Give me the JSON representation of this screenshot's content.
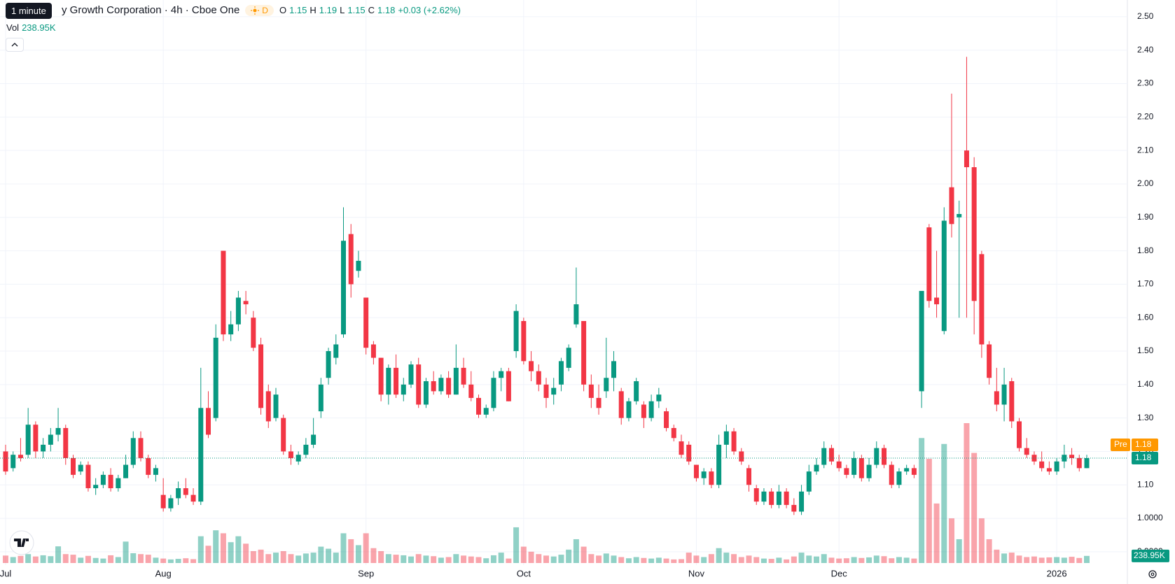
{
  "chart_data": {
    "type": "candlestick",
    "title": "y Growth Corporation · 4h · Cboe One",
    "header": {
      "tooltip": "1 minute",
      "interval": "D",
      "ohlc_labels": [
        "O",
        "H",
        "L",
        "C"
      ],
      "change": "+0.03 (+2.62%)",
      "volume_title": "Vol",
      "volume": "238.95K",
      "premarket_label": "Pre",
      "premarket_price": 1.18
    },
    "up_color": "#089981",
    "down_color": "#f23645",
    "categories": [
      "Jul",
      null,
      null,
      null,
      null,
      null,
      null,
      null,
      null,
      null,
      null,
      null,
      null,
      null,
      null,
      null,
      null,
      null,
      null,
      null,
      null,
      "Aug",
      null,
      null,
      null,
      null,
      null,
      null,
      null,
      null,
      null,
      null,
      null,
      null,
      null,
      null,
      null,
      null,
      null,
      null,
      null,
      null,
      null,
      null,
      null,
      null,
      null,
      null,
      "Sep",
      null,
      null,
      null,
      null,
      null,
      null,
      null,
      null,
      null,
      null,
      null,
      null,
      null,
      null,
      null,
      null,
      null,
      null,
      null,
      null,
      "Oct",
      null,
      null,
      null,
      null,
      null,
      null,
      null,
      null,
      null,
      null,
      null,
      null,
      null,
      null,
      null,
      null,
      null,
      null,
      null,
      null,
      null,
      null,
      "Nov",
      null,
      null,
      null,
      null,
      null,
      null,
      null,
      null,
      null,
      null,
      null,
      null,
      null,
      null,
      null,
      null,
      null,
      null,
      "Dec",
      null,
      null,
      null,
      null,
      null,
      null,
      null,
      null,
      null,
      null,
      null,
      null,
      null,
      null,
      null,
      null,
      null,
      null,
      null,
      null,
      null,
      null,
      null,
      null,
      null,
      null,
      null,
      null,
      "2026",
      null,
      null,
      null,
      null
    ],
    "open": [
      1.2,
      1.15,
      1.19,
      1.19,
      1.28,
      1.2,
      1.22,
      1.25,
      1.27,
      1.18,
      1.14,
      1.16,
      1.09,
      1.1,
      1.13,
      1.09,
      1.12,
      1.16,
      1.24,
      1.18,
      1.13,
      1.07,
      1.03,
      1.06,
      1.09,
      1.07,
      1.05,
      1.33,
      1.3,
      1.8,
      1.55,
      1.58,
      1.65,
      1.6,
      1.52,
      1.38,
      1.3,
      1.3,
      1.2,
      1.17,
      1.19,
      1.22,
      1.32,
      1.42,
      1.48,
      1.55,
      1.85,
      1.74,
      1.66,
      1.52,
      1.48,
      1.37,
      1.45,
      1.37,
      1.4,
      1.46,
      1.34,
      1.41,
      1.38,
      1.42,
      1.37,
      1.45,
      1.4,
      1.36,
      1.31,
      1.33,
      1.42,
      1.44,
      1.5,
      1.59,
      1.47,
      1.44,
      1.4,
      1.37,
      1.4,
      1.45,
      1.58,
      1.59,
      1.4,
      1.36,
      1.38,
      1.42,
      1.38,
      1.3,
      1.35,
      1.34,
      1.3,
      1.35,
      1.32,
      1.27,
      1.23,
      1.22,
      1.16,
      1.12,
      1.14,
      1.1,
      1.22,
      1.26,
      1.2,
      1.15,
      1.09,
      1.05,
      1.08,
      1.04,
      1.08,
      1.04,
      1.02,
      1.08,
      1.14,
      1.16,
      1.21,
      1.17,
      1.15,
      1.13,
      1.18,
      1.12,
      1.16,
      1.21,
      1.16,
      1.1,
      1.14,
      1.15,
      1.38,
      1.87,
      1.66,
      1.56,
      1.99,
      1.9,
      2.1,
      2.05,
      1.79,
      1.52,
      1.38,
      1.34,
      1.41,
      1.29,
      1.21,
      1.19,
      1.17,
      1.15,
      1.14,
      1.17,
      1.19,
      1.18,
      1.15
    ],
    "high": [
      1.22,
      1.2,
      1.24,
      1.33,
      1.29,
      1.24,
      1.27,
      1.33,
      1.28,
      1.19,
      1.17,
      1.17,
      1.12,
      1.14,
      1.15,
      1.13,
      1.19,
      1.26,
      1.26,
      1.19,
      1.16,
      1.12,
      1.07,
      1.11,
      1.12,
      1.09,
      1.45,
      1.38,
      1.58,
      1.8,
      1.62,
      1.68,
      1.68,
      1.62,
      1.54,
      1.4,
      1.39,
      1.31,
      1.22,
      1.2,
      1.24,
      1.3,
      1.42,
      1.51,
      1.55,
      1.93,
      1.88,
      1.8,
      1.66,
      1.53,
      1.48,
      1.46,
      1.49,
      1.42,
      1.47,
      1.48,
      1.42,
      1.44,
      1.43,
      1.44,
      1.52,
      1.48,
      1.44,
      1.37,
      1.34,
      1.44,
      1.45,
      1.45,
      1.64,
      1.6,
      1.5,
      1.46,
      1.42,
      1.42,
      1.48,
      1.52,
      1.75,
      1.59,
      1.43,
      1.4,
      1.54,
      1.5,
      1.39,
      1.36,
      1.42,
      1.35,
      1.37,
      1.39,
      1.33,
      1.28,
      1.25,
      1.23,
      1.16,
      1.15,
      1.15,
      1.25,
      1.28,
      1.27,
      1.21,
      1.16,
      1.1,
      1.09,
      1.09,
      1.1,
      1.09,
      1.06,
      1.1,
      1.16,
      1.18,
      1.23,
      1.22,
      1.19,
      1.16,
      1.2,
      1.19,
      1.18,
      1.23,
      1.22,
      1.17,
      1.15,
      1.16,
      1.16,
      1.68,
      1.88,
      1.8,
      1.93,
      2.27,
      1.95,
      2.38,
      2.08,
      1.8,
      1.53,
      1.45,
      1.45,
      1.42,
      1.3,
      1.24,
      1.2,
      1.2,
      1.17,
      1.18,
      1.22,
      1.21,
      1.19,
      1.19
    ],
    "low": [
      1.13,
      1.14,
      1.17,
      1.18,
      1.18,
      1.18,
      1.2,
      1.23,
      1.16,
      1.12,
      1.13,
      1.08,
      1.07,
      1.09,
      1.08,
      1.08,
      1.12,
      1.15,
      1.17,
      1.12,
      1.11,
      1.02,
      1.02,
      1.04,
      1.06,
      1.04,
      1.04,
      1.24,
      1.29,
      1.53,
      1.53,
      1.56,
      1.61,
      1.5,
      1.31,
      1.27,
      1.29,
      1.19,
      1.16,
      1.16,
      1.18,
      1.21,
      1.3,
      1.4,
      1.46,
      1.54,
      1.66,
      1.72,
      1.49,
      1.46,
      1.35,
      1.34,
      1.36,
      1.35,
      1.39,
      1.33,
      1.33,
      1.37,
      1.37,
      1.36,
      1.37,
      1.39,
      1.35,
      1.3,
      1.3,
      1.32,
      1.38,
      1.35,
      1.48,
      1.46,
      1.41,
      1.38,
      1.33,
      1.34,
      1.38,
      1.44,
      1.57,
      1.38,
      1.33,
      1.31,
      1.36,
      1.38,
      1.28,
      1.29,
      1.34,
      1.27,
      1.29,
      1.33,
      1.26,
      1.23,
      1.18,
      1.16,
      1.11,
      1.1,
      1.09,
      1.09,
      1.18,
      1.19,
      1.16,
      1.08,
      1.04,
      1.04,
      1.03,
      1.03,
      1.03,
      1.01,
      1.01,
      1.07,
      1.13,
      1.15,
      1.16,
      1.14,
      1.12,
      1.12,
      1.11,
      1.11,
      1.15,
      1.15,
      1.09,
      1.09,
      1.13,
      1.12,
      1.33,
      1.63,
      1.6,
      1.55,
      1.84,
      1.6,
      1.6,
      1.55,
      1.48,
      1.4,
      1.32,
      1.29,
      1.27,
      1.2,
      1.18,
      1.16,
      1.14,
      1.13,
      1.13,
      1.15,
      1.16,
      1.14,
      1.15
    ],
    "close": [
      1.14,
      1.19,
      1.18,
      1.28,
      1.2,
      1.22,
      1.25,
      1.27,
      1.18,
      1.13,
      1.16,
      1.09,
      1.1,
      1.13,
      1.09,
      1.12,
      1.16,
      1.24,
      1.18,
      1.13,
      1.15,
      1.03,
      1.06,
      1.09,
      1.07,
      1.05,
      1.33,
      1.25,
      1.54,
      1.55,
      1.58,
      1.66,
      1.64,
      1.51,
      1.33,
      1.29,
      1.37,
      1.2,
      1.18,
      1.19,
      1.22,
      1.25,
      1.4,
      1.5,
      1.52,
      1.83,
      1.7,
      1.77,
      1.51,
      1.48,
      1.37,
      1.45,
      1.37,
      1.4,
      1.46,
      1.34,
      1.41,
      1.38,
      1.42,
      1.37,
      1.45,
      1.4,
      1.36,
      1.31,
      1.33,
      1.42,
      1.44,
      1.35,
      1.62,
      1.47,
      1.44,
      1.4,
      1.36,
      1.39,
      1.47,
      1.51,
      1.64,
      1.4,
      1.36,
      1.33,
      1.42,
      1.47,
      1.3,
      1.35,
      1.41,
      1.3,
      1.35,
      1.37,
      1.27,
      1.24,
      1.19,
      1.17,
      1.12,
      1.14,
      1.1,
      1.22,
      1.26,
      1.2,
      1.17,
      1.1,
      1.05,
      1.08,
      1.04,
      1.08,
      1.04,
      1.02,
      1.08,
      1.14,
      1.16,
      1.21,
      1.17,
      1.15,
      1.13,
      1.18,
      1.12,
      1.16,
      1.21,
      1.16,
      1.1,
      1.14,
      1.15,
      1.13,
      1.68,
      1.65,
      1.64,
      1.89,
      1.88,
      1.91,
      2.05,
      1.65,
      1.52,
      1.42,
      1.34,
      1.4,
      1.29,
      1.21,
      1.19,
      1.17,
      1.15,
      1.14,
      1.17,
      1.19,
      1.18,
      1.15,
      1.18
    ],
    "volume": [
      250000,
      200000,
      240000,
      300000,
      220000,
      260000,
      230000,
      560000,
      300000,
      280000,
      180000,
      240000,
      170000,
      150000,
      260000,
      200000,
      720000,
      330000,
      300000,
      280000,
      180000,
      150000,
      120000,
      140000,
      160000,
      130000,
      900000,
      580000,
      1100000,
      1000000,
      700000,
      900000,
      650000,
      400000,
      450000,
      300000,
      350000,
      400000,
      300000,
      250000,
      320000,
      350000,
      550000,
      480000,
      350000,
      1000000,
      800000,
      600000,
      1000000,
      500000,
      400000,
      300000,
      280000,
      260000,
      220000,
      300000,
      250000,
      230000,
      180000,
      200000,
      300000,
      250000,
      220000,
      200000,
      160000,
      260000,
      350000,
      150000,
      1200000,
      550000,
      380000,
      300000,
      250000,
      220000,
      280000,
      450000,
      800000,
      550000,
      300000,
      250000,
      320000,
      250000,
      200000,
      160000,
      200000,
      170000,
      150000,
      180000,
      150000,
      120000,
      130000,
      350000,
      250000,
      200000,
      300000,
      500000,
      350000,
      300000,
      200000,
      250000,
      200000,
      150000,
      140000,
      180000,
      120000,
      220000,
      350000,
      250000,
      220000,
      300000,
      180000,
      150000,
      160000,
      200000,
      170000,
      190000,
      250000,
      230000,
      160000,
      200000,
      180000,
      150000,
      4200000,
      3500000,
      2000000,
      4000000,
      1500000,
      800000,
      4700000,
      3700000,
      1500000,
      800000,
      450000,
      320000,
      350000,
      250000,
      200000,
      220000,
      180000,
      190000,
      200000,
      180000,
      210000,
      170000,
      238950
    ],
    "ylim": [
      0.86,
      2.55
    ],
    "yticks": [
      {
        "value": 0.9,
        "label": "0.9000"
      },
      {
        "value": 1.0,
        "label": "1.0000"
      },
      {
        "value": 1.1,
        "label": "1.10"
      },
      {
        "value": 1.2,
        "label": "1.20"
      },
      {
        "value": 1.3,
        "label": "1.30"
      },
      {
        "value": 1.4,
        "label": "1.40"
      },
      {
        "value": 1.5,
        "label": "1.50"
      },
      {
        "value": 1.6,
        "label": "1.60"
      },
      {
        "value": 1.7,
        "label": "1.70"
      },
      {
        "value": 1.8,
        "label": "1.80"
      },
      {
        "value": 1.9,
        "label": "1.90"
      },
      {
        "value": 2.0,
        "label": "2.00"
      },
      {
        "value": 2.1,
        "label": "2.10"
      },
      {
        "value": 2.2,
        "label": "2.20"
      },
      {
        "value": 2.3,
        "label": "2.30"
      },
      {
        "value": 2.4,
        "label": "2.40"
      },
      {
        "value": 2.5,
        "label": "2.50"
      }
    ],
    "grid": true
  }
}
